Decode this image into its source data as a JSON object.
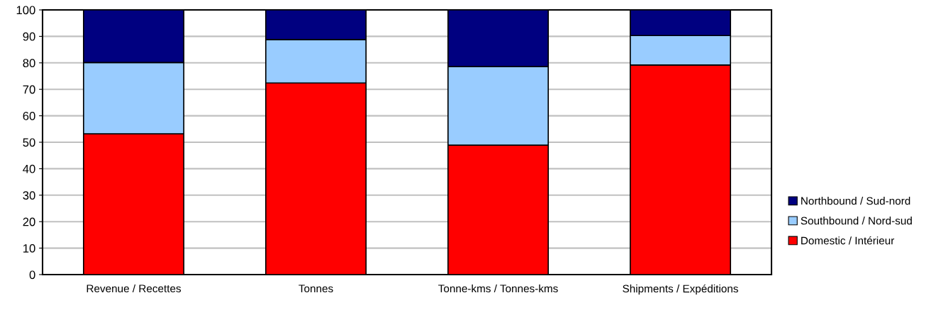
{
  "chart_data": {
    "type": "bar",
    "stacked": true,
    "categories": [
      "Revenue / Recettes",
      "Tonnes",
      "Tonne-kms / Tonnes-kms",
      "Shipments / Expéditions"
    ],
    "series": [
      {
        "name": "Domestic / Intérieur",
        "color": "#ff0000",
        "values": [
          53.2,
          72.4,
          48.9,
          79.2
        ]
      },
      {
        "name": "Southbound / Nord-sud",
        "color": "#99ccff",
        "values": [
          26.9,
          16.4,
          29.7,
          11.1
        ]
      },
      {
        "name": "Northbound / Sud-nord",
        "color": "#000080",
        "values": [
          19.9,
          11.2,
          21.4,
          9.7
        ]
      }
    ],
    "ylim": [
      0,
      100
    ],
    "yticks": [
      0,
      10,
      20,
      30,
      40,
      50,
      60,
      70,
      80,
      90,
      100
    ],
    "grid": "y",
    "legend": "right"
  }
}
